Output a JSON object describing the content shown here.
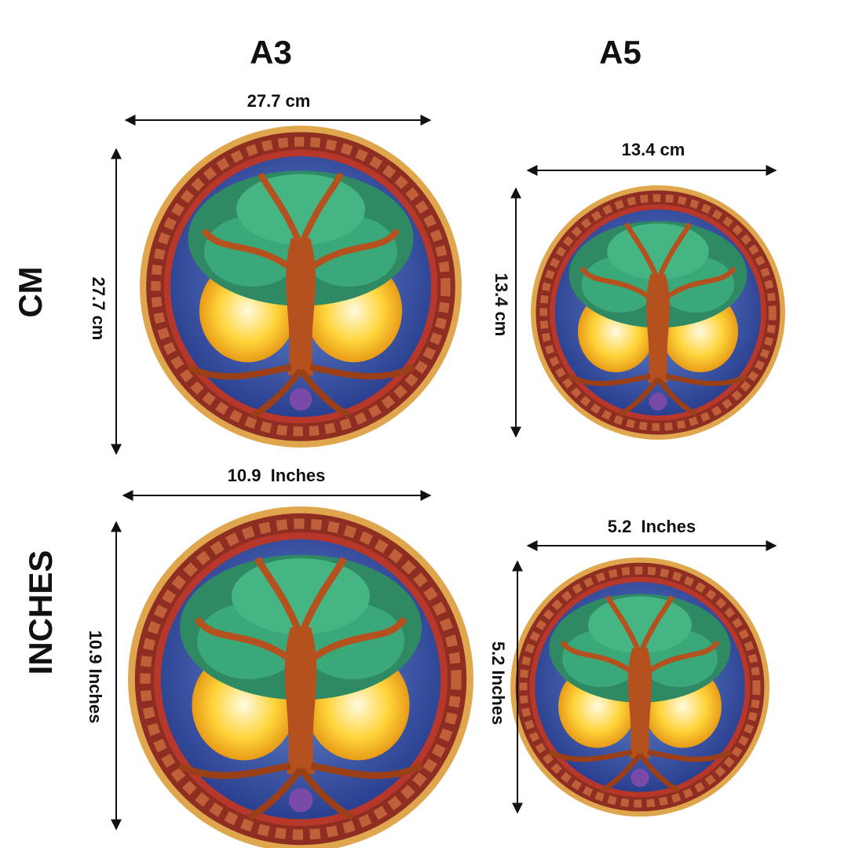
{
  "columns": [
    "A3",
    "A5"
  ],
  "rows": [
    "CM",
    "INCHES"
  ],
  "cells": [
    [
      {
        "width": "27.7 cm",
        "height": "27.7 cm"
      },
      {
        "width": "13.4 cm",
        "height": "13.4 cm"
      }
    ],
    [
      {
        "width": "10.9  Inches",
        "height": "10.9 Inches"
      },
      {
        "width": "5.2  Inches",
        "height": "5.2 Inches"
      }
    ]
  ]
}
